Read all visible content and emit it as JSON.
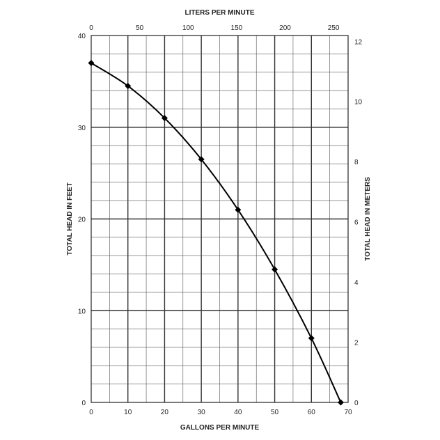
{
  "chart_data": {
    "type": "line",
    "title": "",
    "xlabel": "GALLONS PER MINUTE",
    "x2label": "LITERS PER MINUTE",
    "ylabel": "TOTAL HEAD IN FEET",
    "y2label": "TOTAL HEAD IN METERS",
    "xlim": [
      0,
      70
    ],
    "ylim": [
      0,
      40
    ],
    "x2lim": [
      0,
      264.98
    ],
    "y2lim": [
      0,
      12.192
    ],
    "x_ticks": [
      "0",
      "10",
      "20",
      "30",
      "40",
      "50",
      "60",
      "70"
    ],
    "x2_ticks": [
      "0",
      "50",
      "100",
      "150",
      "200",
      "250"
    ],
    "y_ticks": [
      "0",
      "10",
      "20",
      "30",
      "40"
    ],
    "y2_ticks": [
      "0",
      "2",
      "4",
      "6",
      "8",
      "10",
      "12"
    ],
    "x_tick_values": [
      0,
      10,
      20,
      30,
      40,
      50,
      60,
      70
    ],
    "x2_tick_values": [
      0,
      50,
      100,
      150,
      200,
      250
    ],
    "y_tick_values": [
      0,
      10,
      20,
      30,
      40
    ],
    "y2_tick_values": [
      0,
      2,
      4,
      6,
      8,
      10,
      12
    ],
    "grid": true,
    "series": [
      {
        "x": [
          0,
          10,
          20,
          30,
          40,
          50,
          60,
          68
        ],
        "y": [
          37,
          34.5,
          31,
          26.5,
          21,
          14.5,
          7,
          0
        ]
      }
    ],
    "colors": {
      "line": "#000000",
      "grid_major": "#333333",
      "grid_minor": "#555555"
    }
  }
}
